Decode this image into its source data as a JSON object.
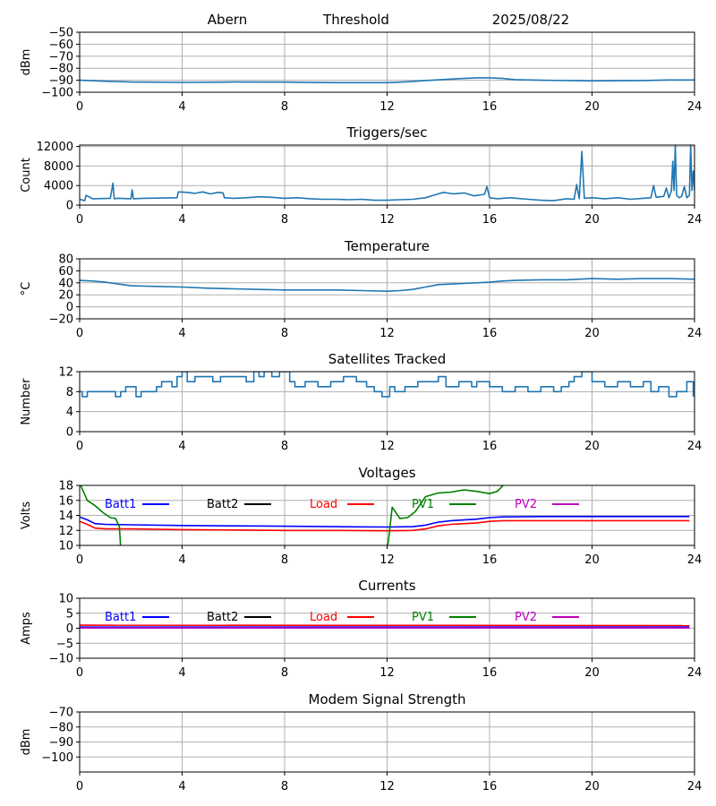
{
  "header": {
    "station": "Abern",
    "mode": "Threshold",
    "date": "2025/08/22"
  },
  "colors": {
    "series": "#1f77b4",
    "grid": "#b0b0b0",
    "batt1": "#0000ff",
    "batt2": "#000000",
    "load": "#ff0000",
    "pv1": "#008000",
    "pv2": "#bf00bf"
  },
  "chart_data": [
    {
      "id": "threshold",
      "type": "line",
      "title": "",
      "ylabel": "dBm",
      "xlim": [
        0,
        24
      ],
      "ylim": [
        -100,
        -50
      ],
      "xticks": [
        0,
        4,
        8,
        12,
        16,
        20,
        24
      ],
      "yticks": [
        -100,
        -90,
        -80,
        -70,
        -60,
        -50
      ],
      "ytick_labels": [
        "−100",
        "−90",
        "−80",
        "−70",
        "−60",
        "−50"
      ],
      "grid": true,
      "legend": [],
      "series": [
        {
          "name": "Threshold",
          "color": "#1f77b4",
          "x": [
            0,
            1,
            2,
            4,
            6,
            8,
            10,
            12,
            12.8,
            13.5,
            14.5,
            15.5,
            16,
            16.5,
            17,
            18,
            20,
            22,
            23,
            24
          ],
          "y": [
            -90,
            -90.8,
            -91.5,
            -91.8,
            -91.5,
            -91.6,
            -92,
            -92,
            -91.3,
            -90.2,
            -89,
            -88,
            -88,
            -88.5,
            -89.5,
            -90,
            -90.5,
            -90.2,
            -89.8,
            -89.8
          ]
        }
      ]
    },
    {
      "id": "triggers",
      "type": "line",
      "title": "Triggers/sec",
      "ylabel": "Count",
      "xlim": [
        0,
        24
      ],
      "ylim": [
        0,
        12300
      ],
      "xticks": [
        0,
        4,
        8,
        12,
        16,
        20,
        24
      ],
      "yticks": [
        0,
        4000,
        8000,
        12000
      ],
      "ytick_labels": [
        "0",
        "4000",
        "8000",
        "12000"
      ],
      "grid": true,
      "legend": [],
      "series": [
        {
          "name": "Triggers",
          "color": "#1f77b4",
          "x": [
            0,
            0.2,
            0.25,
            0.5,
            1.2,
            1.3,
            1.35,
            1.5,
            2.0,
            2.05,
            2.1,
            2.5,
            3.8,
            3.85,
            4.2,
            4.5,
            4.8,
            5.1,
            5.4,
            5.6,
            5.65,
            6,
            6.5,
            7,
            7.5,
            8,
            8.5,
            9,
            9.5,
            10,
            10.5,
            11,
            11.5,
            12,
            12.5,
            13,
            13.5,
            13.8,
            14.2,
            14.6,
            15,
            15.4,
            15.8,
            15.9,
            16,
            16.3,
            16.8,
            17.5,
            18,
            18.5,
            19,
            19.3,
            19.4,
            19.5,
            19.6,
            19.7,
            20,
            20.5,
            21,
            21.5,
            22,
            22.3,
            22.4,
            22.5,
            22.8,
            22.9,
            23.0,
            23.1,
            23.15,
            23.2,
            23.25,
            23.3,
            23.4,
            23.5,
            23.6,
            23.7,
            23.8,
            23.85,
            23.9,
            23.95,
            24
          ],
          "y": [
            1200,
            900,
            2000,
            1300,
            1400,
            4500,
            1300,
            1400,
            1300,
            3100,
            1300,
            1400,
            1500,
            2700,
            2600,
            2400,
            2700,
            2300,
            2600,
            2500,
            1500,
            1400,
            1500,
            1700,
            1600,
            1400,
            1500,
            1300,
            1200,
            1200,
            1100,
            1200,
            1000,
            1000,
            1100,
            1200,
            1500,
            2000,
            2600,
            2300,
            2500,
            1900,
            2200,
            3800,
            1500,
            1300,
            1500,
            1200,
            1000,
            900,
            1300,
            1200,
            4200,
            1300,
            11000,
            1400,
            1500,
            1300,
            1500,
            1200,
            1400,
            1500,
            4000,
            1600,
            1800,
            3500,
            1500,
            3000,
            9000,
            3000,
            12300,
            2000,
            1500,
            1800,
            3800,
            1500,
            2000,
            12300,
            3000,
            7000,
            3000
          ]
        }
      ]
    },
    {
      "id": "temperature",
      "type": "line",
      "title": "Temperature",
      "ylabel": "°C",
      "xlim": [
        0,
        24
      ],
      "ylim": [
        -20,
        80
      ],
      "xticks": [
        0,
        4,
        8,
        12,
        16,
        20,
        24
      ],
      "yticks": [
        -20,
        0,
        20,
        40,
        60,
        80
      ],
      "ytick_labels": [
        "−20",
        "0",
        "20",
        "40",
        "60",
        "80"
      ],
      "grid": true,
      "legend": [],
      "series": [
        {
          "name": "Temperature",
          "color": "#1f77b4",
          "x": [
            0,
            0.5,
            1,
            1.5,
            2,
            3,
            4,
            5,
            6,
            7,
            8,
            9,
            10,
            11,
            12,
            12.5,
            13,
            13.5,
            14,
            15,
            16,
            16.5,
            17,
            18,
            19,
            20,
            21,
            22,
            23,
            24
          ],
          "y": [
            44,
            43,
            41,
            38,
            35,
            34,
            33,
            31,
            30,
            29,
            28,
            28,
            28,
            27,
            26,
            27,
            29,
            33,
            37,
            39,
            41,
            43,
            44,
            45,
            45,
            47,
            46,
            47,
            47,
            46
          ]
        }
      ]
    },
    {
      "id": "satellites",
      "type": "line",
      "title": "Satellites Tracked",
      "ylabel": "Number",
      "xlim": [
        0,
        24
      ],
      "ylim": [
        0,
        12
      ],
      "xticks": [
        0,
        4,
        8,
        12,
        16,
        20,
        24
      ],
      "yticks": [
        0,
        4,
        8,
        12
      ],
      "ytick_labels": [
        "0",
        "4",
        "8",
        "12"
      ],
      "grid": true,
      "legend": [],
      "series": [
        {
          "name": "Satellites",
          "step": true,
          "color": "#1f77b4",
          "x": [
            0,
            0.1,
            0.3,
            1.4,
            1.6,
            1.8,
            2.2,
            2.4,
            3.0,
            3.2,
            3.6,
            3.8,
            4.0,
            4.2,
            4.5,
            5.2,
            5.5,
            6.5,
            6.8,
            7.0,
            7.2,
            7.5,
            7.8,
            8.2,
            8.4,
            8.8,
            9.3,
            9.8,
            10.3,
            10.8,
            11.2,
            11.5,
            11.8,
            12.1,
            12.3,
            12.7,
            13.2,
            14.0,
            14.3,
            14.8,
            15.3,
            15.5,
            16.0,
            16.5,
            17.0,
            17.5,
            18.0,
            18.5,
            18.8,
            19.1,
            19.3,
            19.6,
            20.0,
            20.5,
            21.0,
            21.5,
            22.0,
            22.3,
            22.6,
            23.0,
            23.3,
            23.7,
            23.95
          ],
          "y": [
            8,
            7,
            8,
            7,
            8,
            9,
            7,
            8,
            9,
            10,
            9,
            11,
            12,
            10,
            11,
            10,
            11,
            10,
            12,
            11,
            12,
            11,
            12,
            10,
            9,
            10,
            9,
            10,
            11,
            10,
            9,
            8,
            7,
            9,
            8,
            9,
            10,
            11,
            9,
            10,
            9,
            10,
            9,
            8,
            9,
            8,
            9,
            8,
            9,
            10,
            11,
            12,
            10,
            9,
            10,
            9,
            10,
            8,
            9,
            7,
            8,
            10,
            7
          ]
        }
      ]
    },
    {
      "id": "voltages",
      "type": "line",
      "title": "Voltages",
      "ylabel": "Volts",
      "xlim": [
        0,
        24
      ],
      "ylim": [
        10,
        18
      ],
      "xticks": [
        0,
        4,
        8,
        12,
        16,
        20,
        24
      ],
      "yticks": [
        10,
        12,
        14,
        16,
        18
      ],
      "ytick_labels": [
        "10",
        "12",
        "14",
        "16",
        "18"
      ],
      "grid": true,
      "legend": [
        {
          "label": "Batt1",
          "color": "#0000ff"
        },
        {
          "label": "Batt2",
          "color": "#000000"
        },
        {
          "label": "Load",
          "color": "#ff0000"
        },
        {
          "label": "PV1",
          "color": "#008000"
        },
        {
          "label": "PV2",
          "color": "#bf00bf"
        }
      ],
      "series": [
        {
          "name": "Batt1",
          "color": "#0000ff",
          "x": [
            0,
            0.3,
            0.6,
            1,
            2,
            4,
            6,
            8,
            10,
            12,
            13,
            13.5,
            14,
            14.5,
            15.5,
            16,
            16.5,
            18,
            20,
            22,
            23.8
          ],
          "y": [
            13.8,
            13.4,
            12.9,
            12.8,
            12.75,
            12.65,
            12.6,
            12.55,
            12.5,
            12.45,
            12.5,
            12.7,
            13.1,
            13.3,
            13.5,
            13.7,
            13.8,
            13.85,
            13.85,
            13.85,
            13.85
          ]
        },
        {
          "name": "Load",
          "color": "#ff0000",
          "x": [
            0,
            0.3,
            0.6,
            1,
            2,
            4,
            6,
            8,
            10,
            12,
            13,
            13.5,
            14,
            14.5,
            15.5,
            16,
            16.5,
            18,
            20,
            22,
            23.8
          ],
          "y": [
            13.2,
            12.8,
            12.3,
            12.2,
            12.2,
            12.1,
            12.05,
            12,
            12,
            11.95,
            12,
            12.2,
            12.6,
            12.8,
            13.0,
            13.2,
            13.3,
            13.3,
            13.3,
            13.3,
            13.3
          ]
        },
        {
          "name": "PV1",
          "color": "#008000",
          "x": [
            0,
            0.3,
            0.6,
            0.9,
            1.2,
            1.4,
            1.55,
            1.6,
            12.0,
            12.05,
            12.2,
            12.5,
            12.8,
            13.1,
            13.5,
            14.0,
            14.5,
            15.0,
            15.5,
            16.0,
            16.3,
            16.5,
            16.6
          ],
          "y": [
            18.3,
            16.0,
            15.3,
            14.4,
            13.7,
            13.6,
            12.5,
            9.8,
            9.8,
            10.5,
            15.1,
            13.6,
            13.7,
            14.5,
            16.5,
            17.0,
            17.1,
            17.4,
            17.2,
            16.9,
            17.2,
            17.9,
            18.3
          ]
        }
      ]
    },
    {
      "id": "currents",
      "type": "line",
      "title": "Currents",
      "ylabel": "Amps",
      "xlim": [
        0,
        24
      ],
      "ylim": [
        -10,
        10
      ],
      "xticks": [
        0,
        4,
        8,
        12,
        16,
        20,
        24
      ],
      "yticks": [
        -10,
        -5,
        0,
        5,
        10
      ],
      "ytick_labels": [
        "−10",
        "−5",
        "0",
        "5",
        "10"
      ],
      "grid": true,
      "legend": [
        {
          "label": "Batt1",
          "color": "#0000ff"
        },
        {
          "label": "Batt2",
          "color": "#000000"
        },
        {
          "label": "Load",
          "color": "#ff0000"
        },
        {
          "label": "PV1",
          "color": "#008000"
        },
        {
          "label": "PV2",
          "color": "#bf00bf"
        }
      ],
      "series": [
        {
          "name": "Load",
          "color": "#ff0000",
          "x": [
            0,
            23.8
          ],
          "y": [
            1.0,
            0.9
          ]
        },
        {
          "name": "Batt1",
          "color": "#0000ff",
          "x": [
            0,
            23.8
          ],
          "y": [
            0.4,
            0.4
          ]
        },
        {
          "name": "PV2",
          "color": "#bf00bf",
          "x": [
            0,
            23.8
          ],
          "y": [
            0.1,
            0.1
          ]
        }
      ]
    },
    {
      "id": "modem",
      "type": "line",
      "title": "Modem Signal Strength",
      "ylabel": "dBm",
      "xlim": [
        0,
        24
      ],
      "ylim": [
        -110,
        -70
      ],
      "xticks": [
        0,
        4,
        8,
        12,
        16,
        20,
        24
      ],
      "yticks": [
        -100,
        -90,
        -80,
        -70
      ],
      "ytick_labels": [
        "−100",
        "−90",
        "−80",
        "−70"
      ],
      "grid": true,
      "legend": [],
      "series": []
    }
  ]
}
